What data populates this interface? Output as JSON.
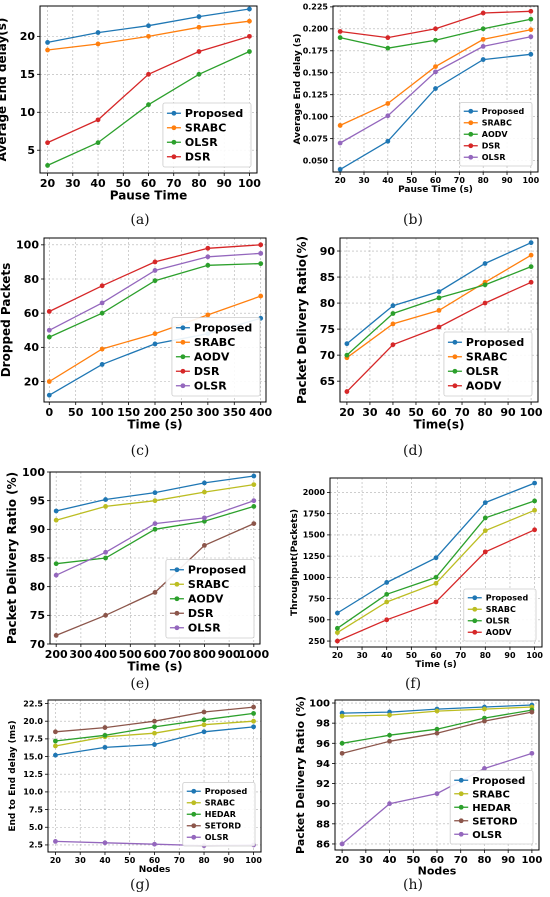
{
  "panels": [
    {
      "caption": "(a)",
      "chart_data": {
        "type": "line",
        "xlabel": "Pause Time",
        "ylabel": "Average End delay(s)",
        "x": [
          20,
          40,
          60,
          80,
          100
        ],
        "xlim": [
          17,
          103
        ],
        "ylim": [
          2,
          24
        ],
        "xticks": [
          20,
          30,
          40,
          50,
          60,
          70,
          80,
          90,
          100
        ],
        "yticks": [
          5,
          10,
          15,
          20
        ],
        "grid": true,
        "legend_position": "lower-right",
        "series": [
          {
            "name": "Proposed",
            "color": "#1f77b4",
            "values": [
              19.2,
              20.5,
              21.4,
              22.6,
              23.6
            ]
          },
          {
            "name": "SRABC",
            "color": "#ff7f0e",
            "values": [
              18.2,
              19.0,
              20.0,
              21.2,
              22.0
            ]
          },
          {
            "name": "OLSR",
            "color": "#2ca02c",
            "values": [
              3.0,
              6.0,
              11.0,
              15.0,
              18.0
            ]
          },
          {
            "name": "DSR",
            "color": "#d62728",
            "values": [
              6.0,
              9.0,
              15.0,
              18.0,
              20.0
            ]
          }
        ]
      }
    },
    {
      "caption": "(b)",
      "chart_data": {
        "type": "line",
        "xlabel": "Pause Time (s)",
        "ylabel": "Average End delay (s)",
        "x": [
          20,
          40,
          60,
          80,
          100
        ],
        "xlim": [
          17,
          103
        ],
        "ylim": [
          0.037,
          0.226
        ],
        "xticks": [
          20,
          30,
          40,
          50,
          60,
          70,
          80,
          90,
          100
        ],
        "yticks": [
          0.05,
          0.075,
          0.1,
          0.125,
          0.15,
          0.175,
          0.2,
          0.225
        ],
        "ytick_labels": [
          "0.050",
          "0.075",
          "0.100",
          "0.125",
          "0.150",
          "0.175",
          "0.200",
          "0.225"
        ],
        "grid": true,
        "legend_position": "lower-right",
        "series": [
          {
            "name": "Proposed",
            "color": "#1f77b4",
            "values": [
              0.04,
              0.072,
              0.132,
              0.165,
              0.171
            ]
          },
          {
            "name": "SRABC",
            "color": "#ff7f0e",
            "values": [
              0.09,
              0.115,
              0.157,
              0.188,
              0.199
            ]
          },
          {
            "name": "AODV",
            "color": "#2ca02c",
            "values": [
              0.19,
              0.178,
              0.187,
              0.2,
              0.211
            ]
          },
          {
            "name": "DSR",
            "color": "#d62728",
            "values": [
              0.197,
              0.19,
              0.2,
              0.218,
              0.22
            ]
          },
          {
            "name": "OLSR",
            "color": "#9467bd",
            "values": [
              0.07,
              0.101,
              0.151,
              0.18,
              0.191
            ]
          }
        ]
      }
    },
    {
      "caption": "(c)",
      "chart_data": {
        "type": "line",
        "xlabel": "Time (s)",
        "ylabel": "Dropped Packets",
        "x": [
          0,
          100,
          200,
          300,
          400
        ],
        "xlim": [
          -10,
          410
        ],
        "ylim": [
          8,
          104
        ],
        "xticks": [
          0,
          50,
          100,
          150,
          200,
          250,
          300,
          350,
          400
        ],
        "yticks": [
          20,
          40,
          60,
          80,
          100
        ],
        "grid": true,
        "legend_position": "lower-right",
        "series": [
          {
            "name": "Proposed",
            "color": "#1f77b4",
            "values": [
              12,
              30,
              42,
              48,
              57
            ]
          },
          {
            "name": "SRABC",
            "color": "#ff7f0e",
            "values": [
              20,
              39,
              48,
              59,
              70
            ]
          },
          {
            "name": "AODV",
            "color": "#2ca02c",
            "values": [
              46,
              60,
              79,
              88,
              89
            ]
          },
          {
            "name": "DSR",
            "color": "#d62728",
            "values": [
              61,
              76,
              90,
              98,
              100
            ]
          },
          {
            "name": "OLSR",
            "color": "#9467bd",
            "values": [
              50,
              66,
              85,
              93,
              95
            ]
          }
        ]
      }
    },
    {
      "caption": "(d)",
      "chart_data": {
        "type": "line",
        "xlabel": "Time(s)",
        "ylabel": "Packet Delivery Ratio(%)",
        "x": [
          20,
          40,
          60,
          80,
          100
        ],
        "xlim": [
          17,
          103
        ],
        "ylim": [
          61,
          92.5
        ],
        "xticks": [
          20,
          30,
          40,
          50,
          60,
          70,
          80,
          90,
          100
        ],
        "yticks": [
          65,
          70,
          75,
          80,
          85,
          90
        ],
        "grid": true,
        "legend_position": "lower-right",
        "series": [
          {
            "name": "Proposed",
            "color": "#1f77b4",
            "values": [
              72.2,
              79.5,
              82.2,
              87.6,
              91.6
            ]
          },
          {
            "name": "SRABC",
            "color": "#ff7f0e",
            "values": [
              69.5,
              76.0,
              78.6,
              84.0,
              89.2
            ]
          },
          {
            "name": "OLSR",
            "color": "#2ca02c",
            "values": [
              70.0,
              78.0,
              81.0,
              83.5,
              87.0
            ]
          },
          {
            "name": "AODV",
            "color": "#d62728",
            "values": [
              63.0,
              72.0,
              75.4,
              80.0,
              84.0
            ]
          }
        ]
      }
    },
    {
      "caption": "(e)",
      "chart_data": {
        "type": "line",
        "xlabel": "Time (s)",
        "ylabel": "Packet Delivery Ratio (%)",
        "x": [
          200,
          400,
          600,
          800,
          1000
        ],
        "xlim": [
          175,
          1025
        ],
        "ylim": [
          70,
          100
        ],
        "xticks": [
          200,
          300,
          400,
          500,
          600,
          700,
          800,
          900,
          1000
        ],
        "yticks": [
          70,
          75,
          80,
          85,
          90,
          95,
          100
        ],
        "grid": true,
        "legend_position": "lower-right",
        "series": [
          {
            "name": "Proposed",
            "color": "#1f77b4",
            "values": [
              93.2,
              95.2,
              96.4,
              98.1,
              99.3
            ]
          },
          {
            "name": "SRABC",
            "color": "#bcbd22",
            "values": [
              91.6,
              94.0,
              95.0,
              96.5,
              97.8
            ]
          },
          {
            "name": "AODV",
            "color": "#2ca02c",
            "values": [
              84.0,
              85.0,
              90.0,
              91.4,
              94.0
            ]
          },
          {
            "name": "DSR",
            "color": "#8c564b",
            "values": [
              71.5,
              75.0,
              79.0,
              87.2,
              91.0
            ]
          },
          {
            "name": "OLSR",
            "color": "#9467bd",
            "values": [
              82.0,
              86.0,
              91.0,
              92.0,
              95.0
            ]
          }
        ]
      }
    },
    {
      "caption": "(f)",
      "chart_data": {
        "type": "line",
        "xlabel": "Time (s)",
        "ylabel": "Throughput(Packets)",
        "x": [
          20,
          40,
          60,
          80,
          100
        ],
        "xlim": [
          17,
          103
        ],
        "ylim": [
          180,
          2170
        ],
        "xticks": [
          20,
          30,
          40,
          50,
          60,
          70,
          80,
          90,
          100
        ],
        "yticks": [
          250,
          500,
          750,
          1000,
          1250,
          1500,
          1750,
          2000
        ],
        "grid": true,
        "legend_position": "lower-right",
        "series": [
          {
            "name": "Proposed",
            "color": "#1f77b4",
            "values": [
              580,
              940,
              1230,
              1880,
              2110
            ]
          },
          {
            "name": "SRABC",
            "color": "#bcbd22",
            "values": [
              350,
              710,
              930,
              1550,
              1790
            ]
          },
          {
            "name": "OLSR",
            "color": "#2ca02c",
            "values": [
              400,
              800,
              1000,
              1700,
              1900
            ]
          },
          {
            "name": "AODV",
            "color": "#d62728",
            "values": [
              250,
              500,
              710,
              1300,
              1560
            ]
          }
        ]
      }
    },
    {
      "caption": "(g)",
      "chart_data": {
        "type": "line",
        "xlabel": "Nodes",
        "ylabel": "End to End delay (ms)",
        "x": [
          20,
          40,
          60,
          80,
          100
        ],
        "xlim": [
          17,
          103
        ],
        "ylim": [
          1.5,
          23
        ],
        "xticks": [
          20,
          30,
          40,
          50,
          60,
          70,
          80,
          90,
          100
        ],
        "yticks": [
          2.5,
          5.0,
          7.5,
          10.0,
          12.5,
          15.0,
          17.5,
          20.0,
          22.5
        ],
        "ytick_labels": [
          "2.5",
          "5.0",
          "7.5",
          "10.0",
          "12.5",
          "15.0",
          "17.5",
          "20.0",
          "22.5"
        ],
        "grid": true,
        "legend_position": "lower-right",
        "series": [
          {
            "name": "Proposed",
            "color": "#1f77b4",
            "values": [
              15.2,
              16.3,
              16.7,
              18.5,
              19.2
            ]
          },
          {
            "name": "SRABC",
            "color": "#bcbd22",
            "values": [
              16.5,
              17.8,
              18.3,
              19.5,
              20.0
            ]
          },
          {
            "name": "HEDAR",
            "color": "#2ca02c",
            "values": [
              17.2,
              18.0,
              19.2,
              20.2,
              21.1
            ]
          },
          {
            "name": "SETORD",
            "color": "#8c564b",
            "values": [
              18.5,
              19.1,
              20.0,
              21.3,
              22.0
            ]
          },
          {
            "name": "OLSR",
            "color": "#9467bd",
            "values": [
              3.0,
              2.8,
              2.6,
              2.4,
              2.5
            ]
          }
        ]
      }
    },
    {
      "caption": "(h)",
      "chart_data": {
        "type": "line",
        "xlabel": "Nodes",
        "ylabel": "Packet Delivery Ratio (%)",
        "x": [
          20,
          40,
          60,
          80,
          100
        ],
        "xlim": [
          17,
          103
        ],
        "ylim": [
          85.4,
          100.3
        ],
        "xticks": [
          20,
          30,
          40,
          50,
          60,
          70,
          80,
          90,
          100
        ],
        "yticks": [
          86,
          88,
          90,
          92,
          94,
          96,
          98,
          100
        ],
        "grid": true,
        "legend_position": "lower-right",
        "series": [
          {
            "name": "Proposed",
            "color": "#1f77b4",
            "values": [
              99.0,
              99.1,
              99.4,
              99.6,
              99.8
            ]
          },
          {
            "name": "SRABC",
            "color": "#bcbd22",
            "values": [
              98.7,
              98.8,
              99.2,
              99.4,
              99.6
            ]
          },
          {
            "name": "HEDAR",
            "color": "#2ca02c",
            "values": [
              96.0,
              96.8,
              97.4,
              98.5,
              99.3
            ]
          },
          {
            "name": "SETORD",
            "color": "#8c564b",
            "values": [
              95.0,
              96.2,
              97.0,
              98.2,
              99.1
            ]
          },
          {
            "name": "OLSR",
            "color": "#9467bd",
            "values": [
              86.0,
              90.0,
              91.0,
              93.5,
              95.0
            ]
          }
        ]
      }
    }
  ]
}
